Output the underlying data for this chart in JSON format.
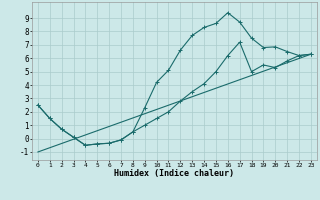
{
  "xlabel": "Humidex (Indice chaleur)",
  "bg_color": "#cce8e8",
  "grid_color": "#aacccc",
  "line_color": "#1a6b6b",
  "xlim": [
    -0.5,
    23.5
  ],
  "ylim": [
    -1.6,
    10.2
  ],
  "xticks": [
    0,
    1,
    2,
    3,
    4,
    5,
    6,
    7,
    8,
    9,
    10,
    11,
    12,
    13,
    14,
    15,
    16,
    17,
    18,
    19,
    20,
    21,
    22,
    23
  ],
  "yticks": [
    -1,
    0,
    1,
    2,
    3,
    4,
    5,
    6,
    7,
    8,
    9
  ],
  "curve1_x": [
    0,
    1,
    2,
    3,
    4,
    5,
    6,
    7,
    8,
    9,
    10,
    11,
    12,
    13,
    14,
    15,
    16,
    17,
    18,
    19,
    20,
    21,
    22,
    23
  ],
  "curve1_y": [
    2.5,
    1.5,
    0.7,
    0.1,
    -0.5,
    -0.4,
    -0.35,
    -0.1,
    0.5,
    2.3,
    4.2,
    5.1,
    6.6,
    7.7,
    8.3,
    8.6,
    9.4,
    8.7,
    7.5,
    6.8,
    6.85,
    6.5,
    6.2,
    6.3
  ],
  "curve2_x": [
    0,
    1,
    2,
    3,
    4,
    5,
    6,
    7,
    8,
    9,
    10,
    11,
    12,
    13,
    14,
    15,
    16,
    17,
    18,
    19,
    20,
    21,
    22,
    23
  ],
  "curve2_y": [
    2.5,
    1.5,
    0.7,
    0.1,
    -0.5,
    -0.4,
    -0.35,
    -0.1,
    0.5,
    1.0,
    1.5,
    2.0,
    2.8,
    3.5,
    4.1,
    5.0,
    6.2,
    7.2,
    5.0,
    5.5,
    5.3,
    5.8,
    6.2,
    6.3
  ],
  "line_x": [
    0,
    23
  ],
  "line_y": [
    -1.0,
    6.3
  ]
}
